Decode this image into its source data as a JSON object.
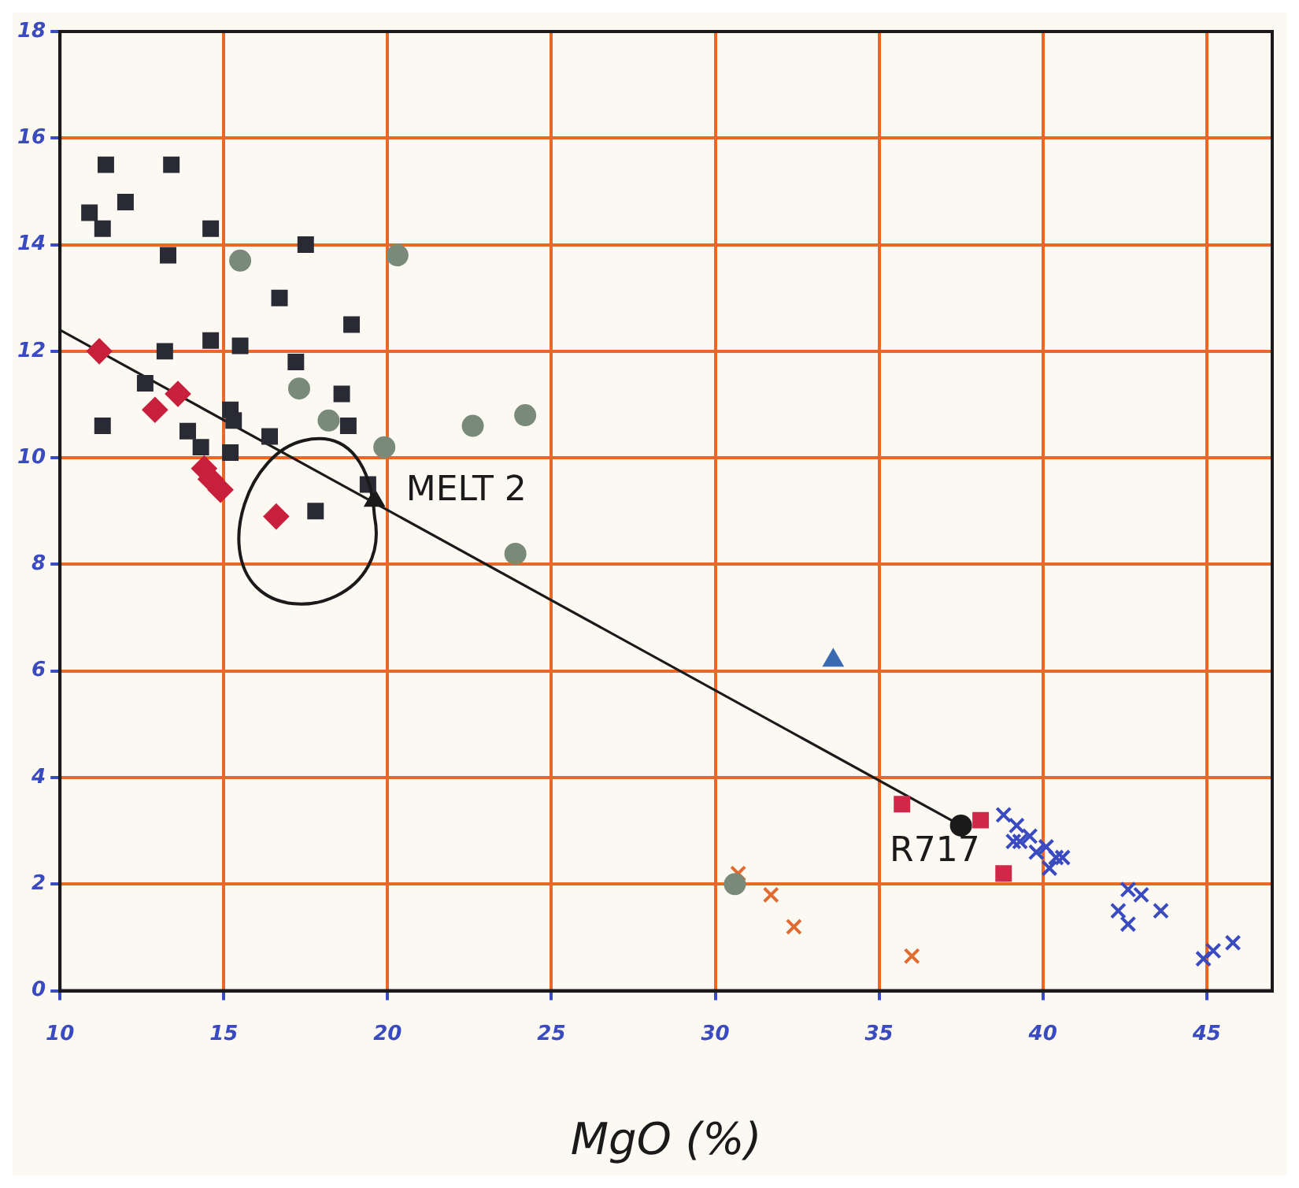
{
  "chart_data": {
    "type": "scatter",
    "xlabel": "MgO (%)",
    "xlim": [
      10,
      47
    ],
    "ylim": [
      0,
      18
    ],
    "xticks": [
      10,
      15,
      20,
      25,
      30,
      35,
      40,
      45
    ],
    "yticks": [
      0,
      2,
      4,
      6,
      8,
      10,
      12,
      14,
      16,
      18
    ],
    "grid": true,
    "legend": false,
    "series": [
      {
        "color": "#2a2a35",
        "marker": "square",
        "x": [
          11.4,
          13.4,
          12.0,
          10.9,
          11.3,
          14.6,
          13.3,
          17.5,
          16.7,
          18.9,
          14.6,
          13.2,
          15.5,
          17.2,
          12.6,
          18.6,
          15.2,
          15.3,
          18.8,
          13.9,
          14.3,
          16.4,
          11.3,
          15.2,
          17.8,
          19.4
        ],
        "values": [
          15.5,
          15.5,
          14.8,
          14.6,
          14.3,
          14.3,
          13.8,
          14.0,
          13.0,
          12.5,
          12.2,
          12.0,
          12.1,
          11.8,
          11.4,
          11.2,
          10.9,
          10.7,
          10.6,
          10.5,
          10.2,
          10.4,
          10.6,
          10.1,
          9.0,
          9.5
        ]
      },
      {
        "color": "#c8203c",
        "marker": "diamond",
        "x": [
          11.2,
          12.9,
          13.6,
          14.4,
          14.9,
          14.6,
          16.6
        ],
        "values": [
          12.0,
          10.9,
          11.2,
          9.8,
          9.4,
          9.6,
          8.9
        ]
      },
      {
        "color": "#7a8a78",
        "marker": "circle",
        "x": [
          15.5,
          20.3,
          17.3,
          18.2,
          19.9,
          22.6,
          24.2,
          23.9,
          30.6
        ],
        "values": [
          13.7,
          13.8,
          11.3,
          10.7,
          10.2,
          10.6,
          10.8,
          8.2,
          2.0
        ]
      },
      {
        "color": "#3a6ab0",
        "marker": "triangle",
        "x": [
          33.6
        ],
        "values": [
          6.2
        ]
      },
      {
        "color": "#e06a30",
        "marker": "cross",
        "x": [
          30.7,
          31.7,
          32.4,
          36.0
        ],
        "values": [
          2.2,
          1.8,
          1.2,
          0.65
        ]
      },
      {
        "color": "#d02848",
        "marker": "square",
        "x": [
          35.7,
          38.1,
          38.8
        ],
        "values": [
          3.5,
          3.2,
          2.2
        ]
      },
      {
        "color": "#3a4ac0",
        "marker": "cross",
        "x": [
          38.8,
          39.2,
          39.3,
          39.6,
          39.8,
          40.1,
          40.4,
          40.2,
          40.6,
          39.1,
          42.6,
          43.0,
          42.3,
          42.6,
          43.6,
          45.2,
          45.8,
          44.9
        ],
        "values": [
          3.3,
          3.1,
          2.8,
          2.9,
          2.6,
          2.7,
          2.5,
          2.3,
          2.5,
          2.8,
          1.9,
          1.8,
          1.5,
          1.25,
          1.5,
          0.75,
          0.9,
          0.6
        ]
      },
      {
        "type": "line",
        "color": "#1a1a1a",
        "marker": "none",
        "x": [
          10,
          37.5
        ],
        "values": [
          12.4,
          3.1
        ]
      },
      {
        "color": "#1a1a1a",
        "marker": "circle",
        "x": [
          37.5
        ],
        "values": [
          3.1
        ]
      },
      {
        "color": "#1a1a1a",
        "marker": "triangle",
        "x": [
          19.6
        ],
        "values": [
          9.2
        ]
      }
    ],
    "annotations": [
      {
        "text": "MELT 2",
        "x": 19.6,
        "y": 9.2
      },
      {
        "text": "R717",
        "x": 37.5,
        "y": 3.1
      }
    ]
  }
}
